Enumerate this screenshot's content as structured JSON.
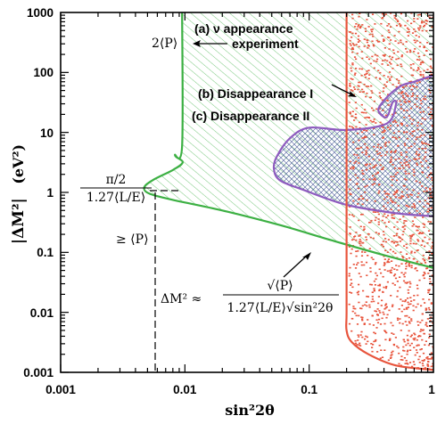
{
  "chart_data": {
    "type": "line",
    "xscale": "log",
    "yscale": "log",
    "xlim": [
      0.001,
      1
    ],
    "ylim": [
      0.001,
      1000
    ],
    "xlabel": "sin²2θ",
    "ylabel_main": "|ΔM²|",
    "ylabel_unit": "(eV²)",
    "x_ticks": [
      "0.001",
      "0.01",
      "0.1",
      "1"
    ],
    "y_ticks": [
      "0.001",
      "0.01",
      "0.1",
      "1",
      "10",
      "100",
      "1000"
    ],
    "grid": false,
    "series": [
      {
        "name": "(a) ν appearance experiment",
        "color": "#3cb043",
        "fill": "diagonal hatching",
        "points": [
          [
            0.0095,
            1000
          ],
          [
            0.0095,
            6
          ],
          [
            0.0083,
            4.2
          ],
          [
            0.0096,
            3.2
          ],
          [
            0.0081,
            2.4
          ],
          [
            0.0055,
            1.6
          ],
          [
            0.0047,
            1.2
          ],
          [
            0.0052,
            0.95
          ],
          [
            0.008,
            0.75
          ],
          [
            0.02,
            0.5
          ],
          [
            0.06,
            0.28
          ],
          [
            0.15,
            0.16
          ],
          [
            0.4,
            0.09
          ],
          [
            1.0,
            0.055
          ]
        ]
      },
      {
        "name": "(b) Disappearance I",
        "color": "#8e5bbf",
        "fill": "cross-hatching",
        "points": [
          [
            1.0,
            90
          ],
          [
            0.7,
            70
          ],
          [
            0.55,
            60
          ],
          [
            0.43,
            40
          ],
          [
            0.36,
            24
          ],
          [
            0.42,
            18
          ],
          [
            0.47,
            32
          ],
          [
            0.5,
            30
          ],
          [
            0.42,
            14
          ],
          [
            0.2,
            11
          ],
          [
            0.1,
            12
          ],
          [
            0.07,
            8
          ],
          [
            0.055,
            4
          ],
          [
            0.052,
            2.5
          ],
          [
            0.058,
            1.6
          ],
          [
            0.09,
            1.1
          ],
          [
            0.2,
            0.62
          ],
          [
            0.5,
            0.45
          ],
          [
            1.0,
            0.4
          ]
        ]
      },
      {
        "name": "(c) Disappearance II",
        "color": "#e8543c",
        "fill": "random dots",
        "points": [
          [
            0.2,
            1000
          ],
          [
            0.2,
            0.1
          ],
          [
            0.2,
            0.01
          ],
          [
            0.2,
            0.005
          ],
          [
            0.22,
            0.0032
          ],
          [
            0.3,
            0.002
          ],
          [
            0.5,
            0.0013
          ],
          [
            1.0,
            0.0011
          ]
        ]
      }
    ],
    "annotations": {
      "a_label_line1": "(a) ν appearance",
      "a_label_line2": "experiment",
      "two_p": "2⟨P⟩",
      "b_label": "(b) Disappearance I",
      "c_label": "(c) Disappearance II",
      "pi_num": "π/2",
      "pi_den": "1.27⟨L/E⟩",
      "ge_p": "≥ ⟨P⟩",
      "formula_lhs": "ΔM² ≈",
      "formula_num": "√⟨P⟩",
      "formula_den": "1.27⟨L/E⟩√sin²2θ"
    }
  }
}
